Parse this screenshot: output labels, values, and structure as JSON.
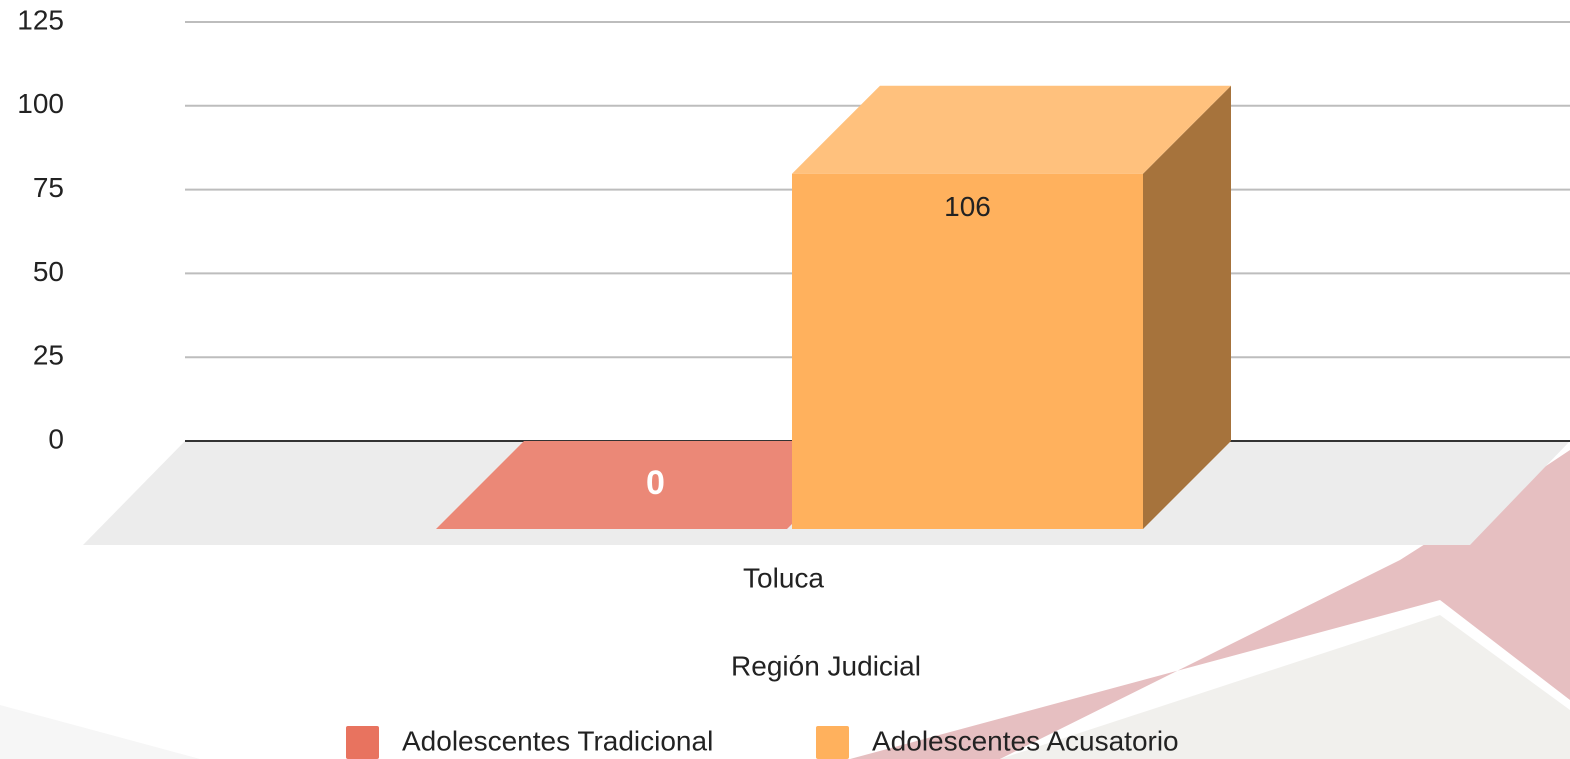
{
  "chart_data": {
    "type": "bar3d",
    "categories": [
      "Toluca"
    ],
    "series": [
      {
        "name": "Adolescentes Tradicional",
        "color": "#e8735f",
        "values": [
          0
        ]
      },
      {
        "name": "Adolescentes Acusatorio",
        "color": "#ffb15d",
        "values": [
          106
        ]
      }
    ],
    "ylim": [
      0,
      125
    ],
    "yticks": [
      0,
      25,
      50,
      75,
      100,
      125
    ],
    "xlabel": "Región Judicial",
    "grid": true,
    "legend": "bottom"
  }
}
